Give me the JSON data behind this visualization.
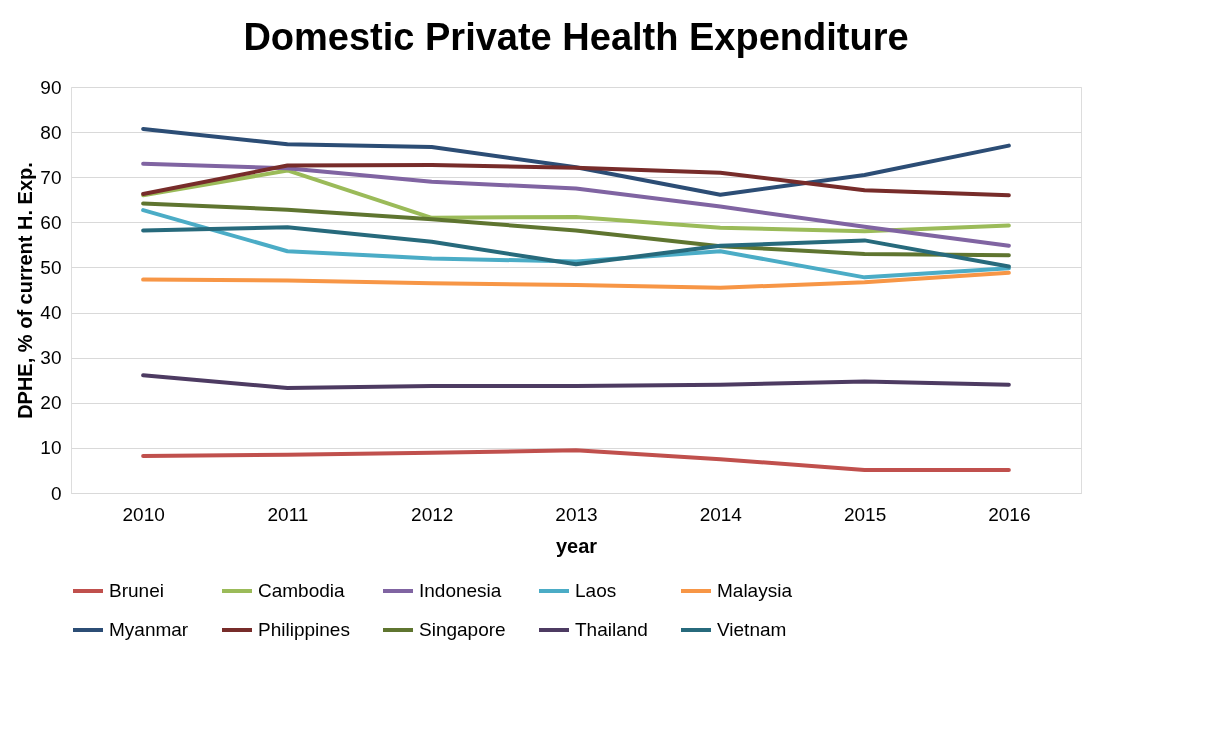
{
  "chart_data": {
    "type": "line",
    "title": "Domestic Private Health Expenditure",
    "xlabel": "year",
    "ylabel": "DPHE, % of current H. Exp.",
    "categories": [
      "2010",
      "2011",
      "2012",
      "2013",
      "2014",
      "2015",
      "2016"
    ],
    "ylim": [
      0,
      90
    ],
    "yticks": [
      0,
      10,
      20,
      30,
      40,
      50,
      60,
      70,
      80,
      90
    ],
    "grid": "y",
    "legend": "bottom",
    "marker": "none",
    "line_style": "solid",
    "series": [
      {
        "name": "Brunei",
        "color": "#c0504d",
        "values": [
          8.2,
          8.5,
          8.9,
          9.5,
          7.5,
          5.1,
          5.1
        ]
      },
      {
        "name": "Cambodia",
        "color": "#9bbb59",
        "values": [
          66,
          71.5,
          61,
          61.2,
          58.8,
          58,
          59.3
        ]
      },
      {
        "name": "Indonesia",
        "color": "#8064a2",
        "values": [
          73,
          72,
          69,
          67.5,
          63.5,
          59,
          54.8
        ]
      },
      {
        "name": "Laos",
        "color": "#4bacc6",
        "values": [
          62.7,
          53.6,
          52,
          51.3,
          53.6,
          47.8,
          49.8
        ]
      },
      {
        "name": "Malaysia",
        "color": "#f79646",
        "values": [
          47.3,
          47.1,
          46.5,
          46.1,
          45.5,
          46.7,
          48.8
        ]
      },
      {
        "name": "Myanmar",
        "color": "#2c4d75",
        "values": [
          80.7,
          77.3,
          76.7,
          72.2,
          66.1,
          70.5,
          77
        ]
      },
      {
        "name": "Philippines",
        "color": "#772c2a",
        "values": [
          66.3,
          72.6,
          72.7,
          72.1,
          71,
          67.1,
          66
        ]
      },
      {
        "name": "Singapore",
        "color": "#5f7530",
        "values": [
          64.2,
          62.8,
          60.7,
          58.2,
          54.7,
          53,
          52.7
        ]
      },
      {
        "name": "Thailand",
        "color": "#4d3b62",
        "values": [
          26.1,
          23.3,
          23.7,
          23.7,
          24,
          24.7,
          24
        ]
      },
      {
        "name": "Vietnam",
        "color": "#276a7c",
        "values": [
          58.2,
          58.9,
          55.7,
          50.7,
          54.8,
          56,
          50.2
        ]
      }
    ]
  }
}
